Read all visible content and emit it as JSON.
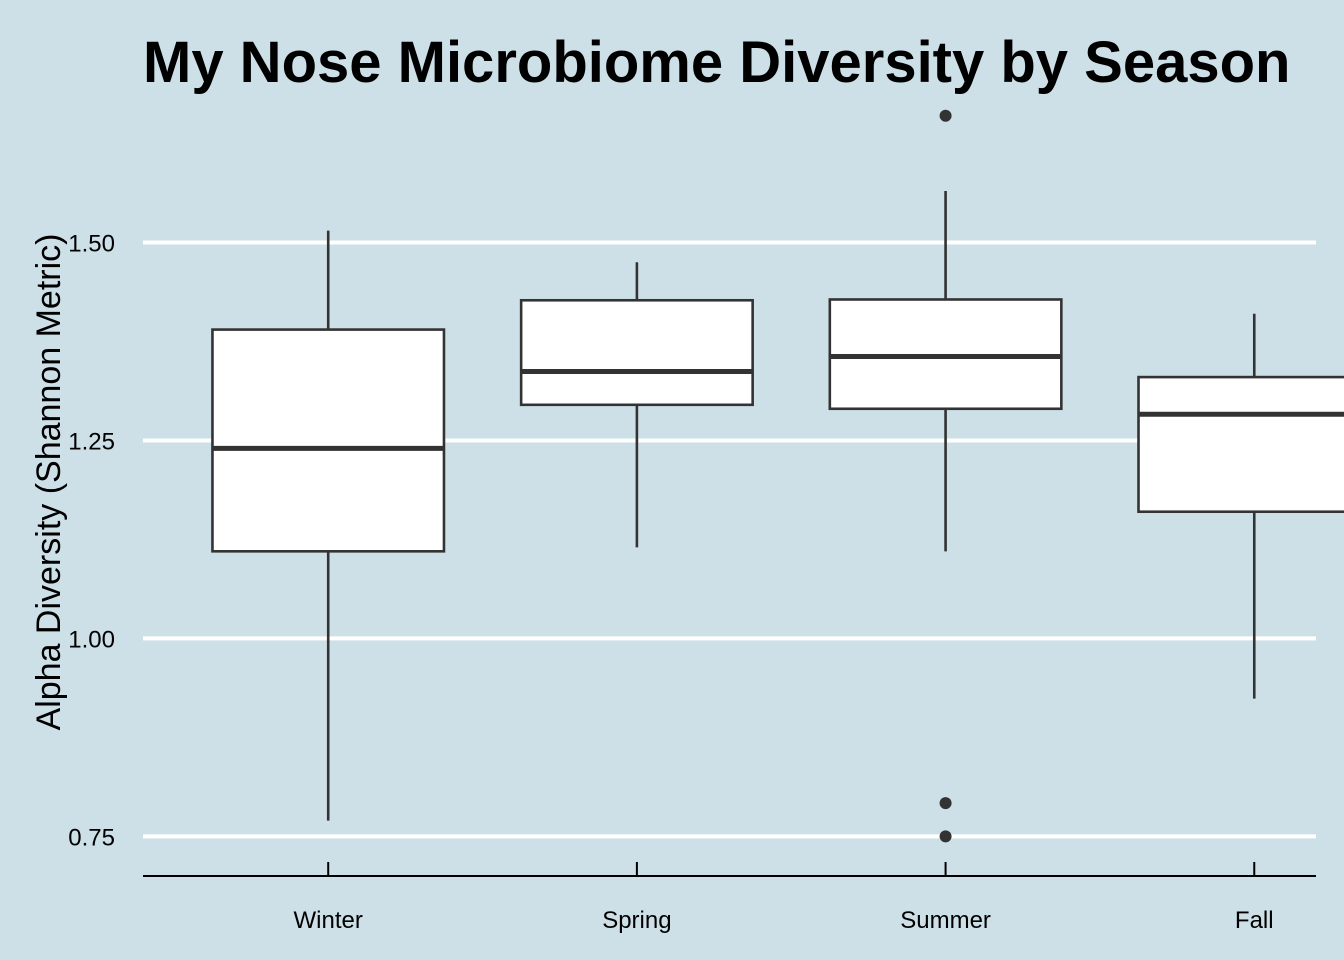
{
  "chart_data": {
    "type": "boxplot",
    "title": "My Nose Microbiome Diversity by Season",
    "xlabel": "",
    "ylabel": "Alpha Diversity (Shannon Metric)",
    "ylim": [
      0.7,
      1.69
    ],
    "yticks": [
      0.75,
      1.0,
      1.25,
      1.5
    ],
    "ytick_labels": [
      "0.75",
      "1.00",
      "1.25",
      "1.50"
    ],
    "grid": {
      "horizontal": true,
      "vertical": false
    },
    "categories": [
      "Winter",
      "Spring",
      "Summer",
      "Fall"
    ],
    "boxes": [
      {
        "category": "Winter",
        "whisker_low": 0.77,
        "q1": 1.11,
        "median": 1.24,
        "q3": 1.39,
        "whisker_high": 1.515,
        "outliers": []
      },
      {
        "category": "Spring",
        "whisker_low": 1.115,
        "q1": 1.295,
        "median": 1.337,
        "q3": 1.427,
        "whisker_high": 1.475,
        "outliers": []
      },
      {
        "category": "Summer",
        "whisker_low": 1.11,
        "q1": 1.29,
        "median": 1.356,
        "q3": 1.428,
        "whisker_high": 1.565,
        "outliers": [
          1.66,
          0.792,
          0.75
        ]
      },
      {
        "category": "Fall",
        "whisker_low": 0.924,
        "q1": 1.16,
        "median": 1.283,
        "q3": 1.33,
        "whisker_high": 1.41,
        "outliers": []
      }
    ]
  }
}
